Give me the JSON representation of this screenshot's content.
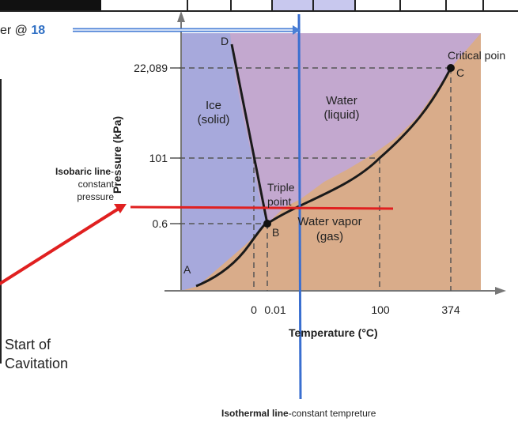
{
  "top_note": {
    "prefix": "er @ ",
    "value": "18"
  },
  "axes": {
    "y_title": "Pressure (kPa)",
    "x_title": "Temperature (°C)",
    "y_ticks": [
      "22,089",
      "101",
      "0.6"
    ],
    "x_ticks": [
      "0",
      "0.01",
      "100",
      "374"
    ]
  },
  "regions": {
    "ice_line1": "Ice",
    "ice_line2": "(solid)",
    "water_line1": "Water",
    "water_line2": "(liquid)",
    "vapor_line1": "Water vapor",
    "vapor_line2": "(gas)"
  },
  "points": {
    "A": "A",
    "B": "B",
    "C": "C",
    "D": "D",
    "triple_line1": "Triple",
    "triple_line2": "point",
    "critical": "Critical poin"
  },
  "annotations": {
    "isobaric_bold": "Isobaric line",
    "isobaric_dash": "-",
    "isobaric_line2": "constant",
    "isobaric_line3": "pressure",
    "cavitation_line1": "Start of",
    "cavitation_line2": "Cavitation",
    "isothermal_bold": "Isothermal line",
    "isothermal_rest": "-constant tempreture"
  },
  "colors": {
    "solid": "#a7a9dc",
    "liquid": "#c3a8cf",
    "gas": "#d9ac8a",
    "isobaric": "#e02020",
    "isothermal": "#3a6fd0",
    "arrow_blue": "#4a7fd6"
  }
}
